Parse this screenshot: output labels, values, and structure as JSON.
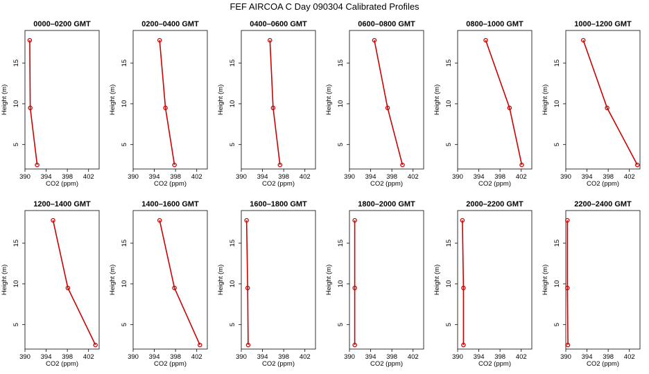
{
  "figure": {
    "title": "FEF AIRCOA C  Day 090304  Calibrated Profiles"
  },
  "colors": {
    "profile": "#cc0000",
    "axes": "#000000"
  },
  "chart_data": [
    {
      "type": "line",
      "title": "0000–0200 GMT",
      "xlabel": "CO2 (ppm)",
      "ylabel": "Height (m)",
      "xlim": [
        390,
        404
      ],
      "ylim": [
        2,
        19
      ],
      "xticks": [
        390,
        394,
        398,
        402
      ],
      "yticks": [
        5,
        10,
        15
      ],
      "series": [
        {
          "x": [
            392.3,
            391.0,
            390.9
          ],
          "y": [
            2.5,
            9.5,
            17.8
          ]
        }
      ]
    },
    {
      "type": "line",
      "title": "0200–0400 GMT",
      "xlabel": "CO2 (ppm)",
      "ylabel": "Height (m)",
      "xlim": [
        390,
        404
      ],
      "ylim": [
        2,
        19
      ],
      "xticks": [
        390,
        394,
        398,
        402
      ],
      "yticks": [
        5,
        10,
        15
      ],
      "series": [
        {
          "x": [
            397.8,
            396.1,
            395.0
          ],
          "y": [
            2.5,
            9.5,
            17.8
          ]
        }
      ]
    },
    {
      "type": "line",
      "title": "0400–0600 GMT",
      "xlabel": "CO2 (ppm)",
      "ylabel": "Height (m)",
      "xlim": [
        390,
        404
      ],
      "ylim": [
        2,
        19
      ],
      "xticks": [
        390,
        394,
        398,
        402
      ],
      "yticks": [
        5,
        10,
        15
      ],
      "series": [
        {
          "x": [
            397.3,
            396.0,
            395.4
          ],
          "y": [
            2.5,
            9.5,
            17.8
          ]
        }
      ]
    },
    {
      "type": "line",
      "title": "0600–0800 GMT",
      "xlabel": "CO2 (ppm)",
      "ylabel": "Height (m)",
      "xlim": [
        390,
        404
      ],
      "ylim": [
        2,
        19
      ],
      "xticks": [
        390,
        394,
        398,
        402
      ],
      "yticks": [
        5,
        10,
        15
      ],
      "series": [
        {
          "x": [
            400.0,
            397.2,
            394.7
          ],
          "y": [
            2.5,
            9.5,
            17.8
          ]
        }
      ]
    },
    {
      "type": "line",
      "title": "0800–1000 GMT",
      "xlabel": "CO2 (ppm)",
      "ylabel": "Height (m)",
      "xlim": [
        390,
        404
      ],
      "ylim": [
        2,
        19
      ],
      "xticks": [
        390,
        394,
        398,
        402
      ],
      "yticks": [
        5,
        10,
        15
      ],
      "series": [
        {
          "x": [
            402.1,
            399.8,
            395.3
          ],
          "y": [
            2.5,
            9.5,
            17.8
          ]
        }
      ]
    },
    {
      "type": "line",
      "title": "1000–1200 GMT",
      "xlabel": "CO2 (ppm)",
      "ylabel": "Height (m)",
      "xlim": [
        390,
        404
      ],
      "ylim": [
        2,
        19
      ],
      "xticks": [
        390,
        394,
        398,
        402
      ],
      "yticks": [
        5,
        10,
        15
      ],
      "series": [
        {
          "x": [
            403.5,
            397.8,
            393.3
          ],
          "y": [
            2.5,
            9.5,
            17.8
          ]
        }
      ]
    },
    {
      "type": "line",
      "title": "1200–1400 GMT",
      "xlabel": "CO2 (ppm)",
      "ylabel": "Height (m)",
      "xlim": [
        390,
        404
      ],
      "ylim": [
        2,
        19
      ],
      "xticks": [
        390,
        394,
        398,
        402
      ],
      "yticks": [
        5,
        10,
        15
      ],
      "series": [
        {
          "x": [
            403.3,
            398.1,
            395.3
          ],
          "y": [
            2.5,
            9.5,
            17.8
          ]
        }
      ]
    },
    {
      "type": "line",
      "title": "1400–1600 GMT",
      "xlabel": "CO2 (ppm)",
      "ylabel": "Height (m)",
      "xlim": [
        390,
        404
      ],
      "ylim": [
        2,
        19
      ],
      "xticks": [
        390,
        394,
        398,
        402
      ],
      "yticks": [
        5,
        10,
        15
      ],
      "series": [
        {
          "x": [
            402.6,
            397.8,
            395.0
          ],
          "y": [
            2.5,
            9.5,
            17.8
          ]
        }
      ]
    },
    {
      "type": "line",
      "title": "1600–1800 GMT",
      "xlabel": "CO2 (ppm)",
      "ylabel": "Height (m)",
      "xlim": [
        390,
        404
      ],
      "ylim": [
        2,
        19
      ],
      "xticks": [
        390,
        394,
        398,
        402
      ],
      "yticks": [
        5,
        10,
        15
      ],
      "series": [
        {
          "x": [
            391.3,
            391.2,
            391.0
          ],
          "y": [
            2.5,
            9.5,
            17.8
          ]
        }
      ]
    },
    {
      "type": "line",
      "title": "1800–2000 GMT",
      "xlabel": "CO2 (ppm)",
      "ylabel": "Height (m)",
      "xlim": [
        390,
        404
      ],
      "ylim": [
        2,
        19
      ],
      "xticks": [
        390,
        394,
        398,
        402
      ],
      "yticks": [
        5,
        10,
        15
      ],
      "series": [
        {
          "x": [
            391.0,
            391.0,
            391.0
          ],
          "y": [
            2.5,
            9.5,
            17.8
          ]
        }
      ]
    },
    {
      "type": "line",
      "title": "2000–2200 GMT",
      "xlabel": "CO2 (ppm)",
      "ylabel": "Height (m)",
      "xlim": [
        390,
        404
      ],
      "ylim": [
        2,
        19
      ],
      "xticks": [
        390,
        394,
        398,
        402
      ],
      "yticks": [
        5,
        10,
        15
      ],
      "series": [
        {
          "x": [
            391.1,
            391.1,
            390.9
          ],
          "y": [
            2.5,
            9.5,
            17.8
          ]
        }
      ]
    },
    {
      "type": "line",
      "title": "2200–2400 GMT",
      "xlabel": "CO2 (ppm)",
      "ylabel": "Height (m)",
      "xlim": [
        390,
        404
      ],
      "ylim": [
        2,
        19
      ],
      "xticks": [
        390,
        394,
        398,
        402
      ],
      "yticks": [
        5,
        10,
        15
      ],
      "series": [
        {
          "x": [
            390.4,
            390.3,
            390.3
          ],
          "y": [
            2.5,
            9.5,
            17.8
          ]
        }
      ]
    }
  ]
}
